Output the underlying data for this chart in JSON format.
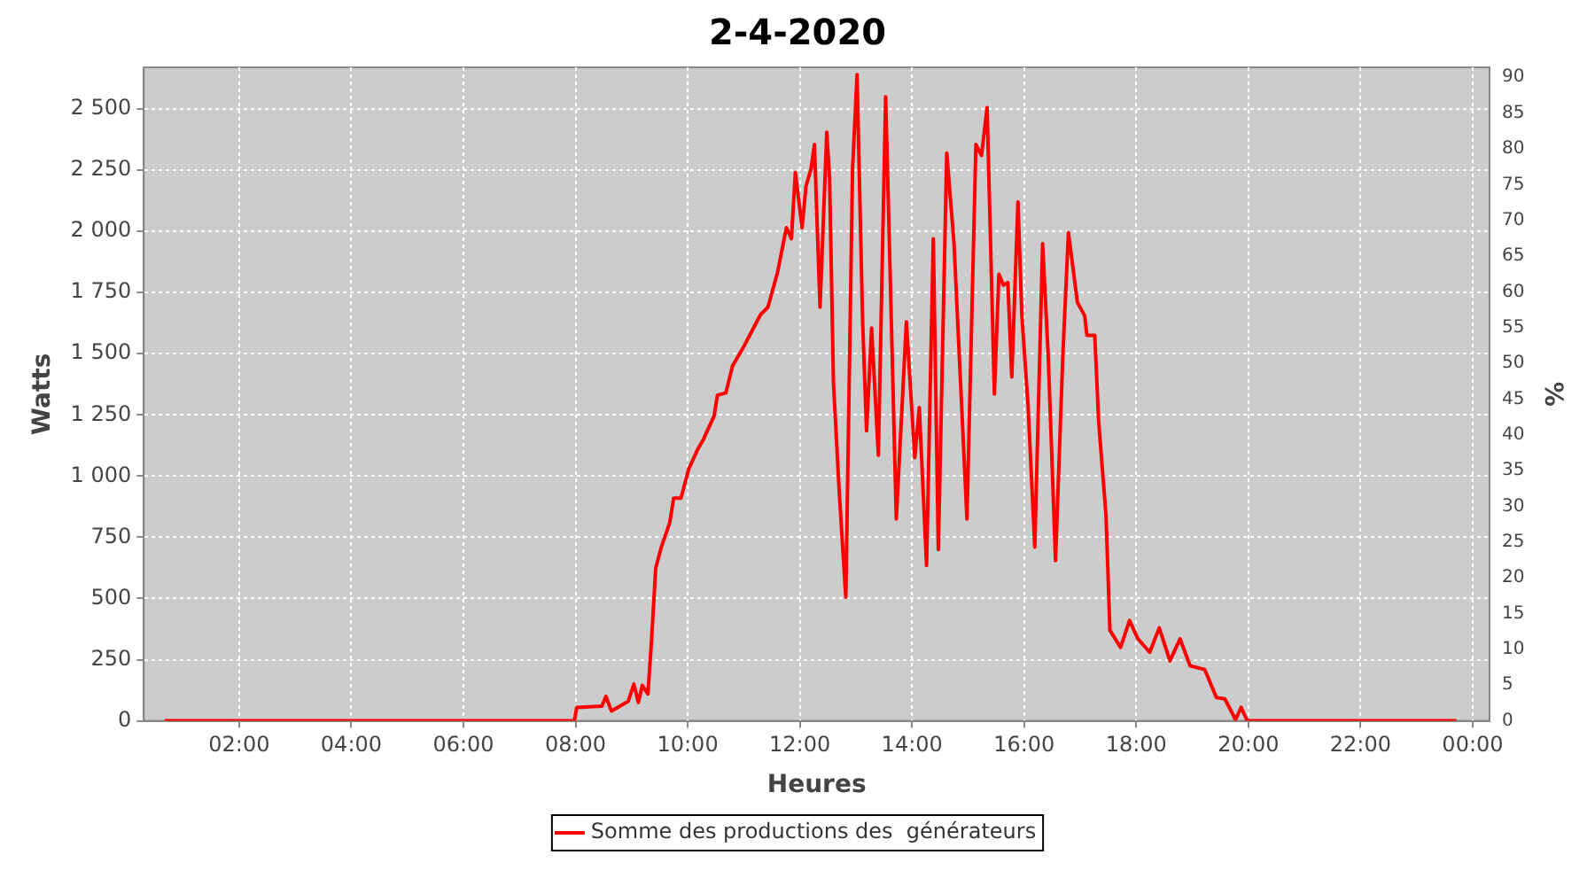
{
  "chart_data": {
    "type": "line",
    "title": "2-4-2020",
    "xlabel": "Heures",
    "ylabel": "Watts",
    "y2label": "%",
    "x": [
      0.67,
      7.2,
      7.98,
      8.02,
      8.47,
      8.54,
      8.64,
      8.94,
      9.04,
      9.12,
      9.19,
      9.29,
      9.35,
      9.43,
      9.53,
      9.68,
      9.75,
      9.88,
      10.02,
      10.18,
      10.28,
      10.47,
      10.53,
      10.68,
      10.8,
      10.99,
      11.15,
      11.3,
      11.43,
      11.6,
      11.76,
      11.85,
      11.92,
      12.04,
      12.11,
      12.2,
      12.26,
      12.36,
      12.48,
      12.53,
      12.6,
      12.7,
      12.82,
      12.94,
      13.02,
      13.12,
      13.19,
      13.28,
      13.4,
      13.53,
      13.59,
      13.72,
      13.9,
      14.05,
      14.13,
      14.26,
      14.38,
      14.47,
      14.62,
      14.75,
      14.98,
      15.14,
      15.24,
      15.34,
      15.47,
      15.55,
      15.63,
      15.71,
      15.78,
      15.89,
      15.96,
      16.07,
      16.19,
      16.33,
      16.43,
      16.56,
      16.69,
      16.79,
      16.95,
      17.08,
      17.12,
      17.26,
      17.33,
      17.46,
      17.53,
      17.72,
      17.88,
      18.03,
      18.24,
      18.41,
      18.6,
      18.78,
      18.96,
      19.22,
      19.43,
      19.58,
      19.77,
      19.87,
      19.98,
      23.71
    ],
    "series": [
      {
        "name": "Somme des productions des  générateurs",
        "color": "#ff0000",
        "values": [
          0,
          0,
          0,
          55,
          60,
          100,
          40,
          80,
          150,
          75,
          145,
          110,
          310,
          625,
          710,
          810,
          910,
          910,
          1030,
          1110,
          1150,
          1245,
          1330,
          1340,
          1450,
          1525,
          1595,
          1660,
          1690,
          1830,
          2015,
          1970,
          2240,
          2015,
          2185,
          2255,
          2355,
          1690,
          2405,
          2220,
          1380,
          945,
          505,
          2255,
          2640,
          1630,
          1185,
          1605,
          1085,
          2550,
          2015,
          825,
          1630,
          1075,
          1280,
          635,
          1970,
          700,
          2320,
          1950,
          825,
          2355,
          2310,
          2505,
          1335,
          1825,
          1780,
          1790,
          1405,
          2120,
          1655,
          1290,
          710,
          1950,
          1490,
          655,
          1490,
          1995,
          1710,
          1655,
          1575,
          1575,
          1220,
          840,
          370,
          300,
          410,
          335,
          280,
          380,
          245,
          335,
          225,
          210,
          95,
          90,
          5,
          55,
          0,
          0
        ]
      }
    ],
    "xlim": [
      0.3,
      24.3
    ],
    "xticks": [
      {
        "value": 2,
        "label": "02:00"
      },
      {
        "value": 4,
        "label": "04:00"
      },
      {
        "value": 6,
        "label": "06:00"
      },
      {
        "value": 8,
        "label": "08:00"
      },
      {
        "value": 10,
        "label": "10:00"
      },
      {
        "value": 12,
        "label": "12:00"
      },
      {
        "value": 14,
        "label": "14:00"
      },
      {
        "value": 16,
        "label": "16:00"
      },
      {
        "value": 18,
        "label": "18:00"
      },
      {
        "value": 20,
        "label": "20:00"
      },
      {
        "value": 22,
        "label": "22:00"
      },
      {
        "value": 24,
        "label": "00:00"
      }
    ],
    "ylim": [
      0,
      2670
    ],
    "yticks": [
      0,
      250,
      500,
      750,
      {
        "value": 1000,
        "label": "1 000"
      },
      {
        "value": 1250,
        "label": "1 250"
      },
      {
        "value": 1500,
        "label": "1 500"
      },
      {
        "value": 1750,
        "label": "1 750"
      },
      {
        "value": 2000,
        "label": "2 000"
      },
      {
        "value": 2250,
        "label": "2 250"
      },
      {
        "value": 2500,
        "label": "2 500"
      }
    ],
    "y2lim": [
      0,
      91.4
    ],
    "y2ticks": [
      0,
      5,
      10,
      15,
      20,
      25,
      30,
      35,
      40,
      45,
      50,
      55,
      60,
      65,
      70,
      75,
      80,
      85,
      90
    ],
    "grid": true,
    "legend": "bottom",
    "marker": "none",
    "line_style": "solid"
  }
}
